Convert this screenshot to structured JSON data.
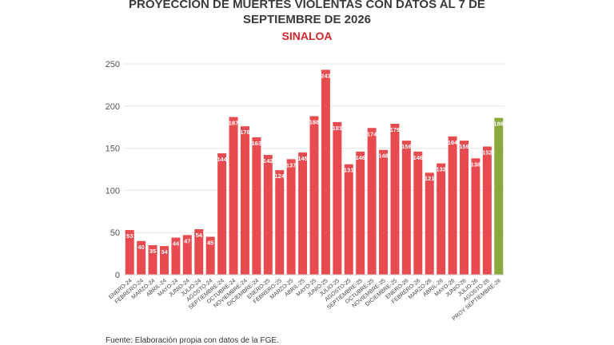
{
  "header": {
    "title_line1": "PROYECCIÓN DE MUERTES VIOLENTAS CON DATOS AL 7 DE",
    "title_line2": "SEPTIEMBRE DE 2026",
    "subtitle": "SINALOA"
  },
  "footer": {
    "source": "Fuente: Elaboración propia con datos de la FGE."
  },
  "colors": {
    "bar": "#e84b4f",
    "projection_bar": "#8aa83e",
    "title": "#3a3a3a",
    "subtitle": "#d6262c",
    "grid": "#e6e6e6"
  },
  "chart_data": {
    "type": "bar",
    "title": "PROYECCIÓN DE MUERTES VIOLENTAS CON DATOS AL 7 DE SEPTIEMBRE DE 2026",
    "subtitle": "SINALOA",
    "xlabel": "",
    "ylabel": "",
    "ylim": [
      0,
      250
    ],
    "yticks": [
      0,
      50,
      100,
      150,
      200,
      250
    ],
    "grid": true,
    "categories": [
      "ENERO-24",
      "FEBRERO-24",
      "MARZO-24",
      "ABRIL-24",
      "MAYO-24",
      "JUNIO-24",
      "JULIO-24",
      "AGOSTO-24",
      "SEPTIEMBRE-24",
      "OCTUBRE-24",
      "NOVIEMBRE-24",
      "DICIEMBRE-24",
      "ENERO-25",
      "FEBRERO-25",
      "MARZO-25",
      "ABRIL-25",
      "MAYO-25",
      "JUNIO-25",
      "JULIO-25",
      "AGOSTO-25",
      "SEPTIEMBRE-25",
      "OCTUBRE-25",
      "NOVIEMBRE-25",
      "DICIEMBRE-25",
      "ENERO-26",
      "FEBRERO-26",
      "MARZO-26",
      "ABRIL-26",
      "MAYO-26",
      "JUNIO-26",
      "JULIO-26",
      "AGOSTO-26",
      "PROY SEPTIEMBRE-26"
    ],
    "values": [
      53,
      40,
      35,
      34,
      44,
      47,
      54,
      45,
      144,
      187,
      176,
      163,
      142,
      124,
      137,
      145,
      188,
      243,
      181,
      131,
      146,
      174,
      148,
      179,
      159,
      146,
      121,
      132,
      164,
      159,
      138,
      152,
      186
    ],
    "highlight_index": 32
  }
}
